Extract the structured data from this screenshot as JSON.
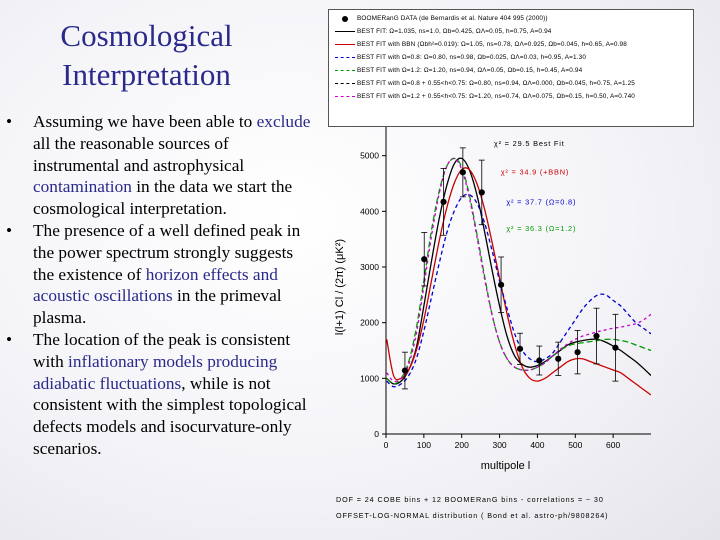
{
  "slide": {
    "title_lines": [
      "Cosmological",
      "Interpretation"
    ],
    "bullets": [
      [
        {
          "t": "Assuming we have been able to "
        },
        {
          "t": "exclude",
          "hl": true
        },
        {
          "t": " all the reasonable sources of instrumental and astrophysical "
        },
        {
          "t": "contamination",
          "hl": true
        },
        {
          "t": " in the data we start the cosmological interpretation."
        }
      ],
      [
        {
          "t": "The presence of a well defined peak in the power spectrum strongly suggests the existence of "
        },
        {
          "t": "horizon effects and acoustic oscillations",
          "hl": true
        },
        {
          "t": " in the primeval plasma."
        }
      ],
      [
        {
          "t": "The location of the peak is consistent with "
        },
        {
          "t": "inflationary models producing adiabatic fluctuations",
          "hl": true
        },
        {
          "t": ", while is not consistent with the simplest topological defects models and isocurvature-only scenarios."
        }
      ]
    ],
    "bullet_symbol": "•",
    "highlight_color": "#2a2a8c",
    "footnote_lines": [
      "DOF = 24 COBE bins + 12 BOOMERanG bins - correlations = ~ 30",
      "OFFSET-LOG-NORMAL distribution ( Bond et al. astro-ph/9808264)"
    ]
  },
  "chart_data": {
    "type": "line",
    "xlabel": "multipole l",
    "ylabel": "l(l+1) Cl / (2π)  (μK²)",
    "xlim": [
      0,
      700
    ],
    "ylim": [
      0,
      6000
    ],
    "xticks": [
      0,
      100,
      200,
      300,
      400,
      500,
      600
    ],
    "yticks": [
      0,
      1000,
      2000,
      3000,
      4000,
      5000
    ],
    "data_points": {
      "name": "BOOMERanG DATA (de Bernardis et al. Nature 404 995 (2000))",
      "x": [
        50,
        101,
        152,
        203,
        253,
        304,
        354,
        405,
        455,
        506,
        556,
        606
      ],
      "y": [
        1140,
        3140,
        4170,
        4700,
        4340,
        2680,
        1530,
        1320,
        1350,
        1470,
        1760,
        1550
      ],
      "err": [
        330,
        480,
        600,
        440,
        580,
        500,
        280,
        260,
        300,
        390,
        500,
        600
      ]
    },
    "series": [
      {
        "name": "BEST FIT: Ω=1.035, ns=1.0, Ωb=0.425, ΩΛ=0.05, h=0.75, A=0.94",
        "color": "#000000",
        "dash": "",
        "x": [
          2,
          20,
          40,
          60,
          80,
          100,
          120,
          140,
          160,
          180,
          200,
          220,
          240,
          260,
          280,
          300,
          320,
          340,
          360,
          380,
          400,
          420,
          440,
          460,
          480,
          500,
          520,
          540,
          560,
          580,
          600,
          620,
          640,
          660,
          680,
          700
        ],
        "y": [
          1000,
          900,
          950,
          1150,
          1550,
          2300,
          3100,
          3850,
          4450,
          4850,
          4950,
          4750,
          4300,
          3650,
          2950,
          2300,
          1750,
          1400,
          1250,
          1200,
          1230,
          1300,
          1400,
          1500,
          1600,
          1650,
          1680,
          1700,
          1700,
          1650,
          1580,
          1500,
          1400,
          1300,
          1180,
          1050
        ]
      },
      {
        "name": "BEST FIT with BBN (Ωbh²=0.019): Ω=1.05, ns=0.78, ΩΛ=0.925, Ωb=0.045, h=0.65, A=0.98",
        "color": "#cc0000",
        "dash": "",
        "x": [
          2,
          20,
          40,
          60,
          80,
          100,
          120,
          140,
          160,
          180,
          200,
          220,
          240,
          260,
          280,
          300,
          320,
          340,
          360,
          380,
          400,
          420,
          440,
          460,
          480,
          500,
          520,
          540,
          560,
          580,
          600,
          620,
          640,
          660,
          680,
          700
        ],
        "y": [
          1700,
          1050,
          1000,
          1150,
          1500,
          2050,
          2750,
          3450,
          4050,
          4500,
          4750,
          4750,
          4500,
          4050,
          3450,
          2800,
          2150,
          1600,
          1200,
          1000,
          950,
          1000,
          1100,
          1200,
          1300,
          1350,
          1350,
          1300,
          1250,
          1200,
          1150,
          1100,
          1000,
          900,
          800,
          700
        ]
      },
      {
        "name": "BEST FIT with Ω=0.8: Ω=0.80, ns=0.98, Ωb=0.025, ΩΛ=0.03, h=0.95, A=1.30",
        "color": "#0000cc",
        "dash": "4,3",
        "x": [
          2,
          20,
          40,
          60,
          80,
          100,
          120,
          140,
          160,
          180,
          200,
          220,
          240,
          260,
          280,
          300,
          320,
          340,
          360,
          380,
          400,
          420,
          440,
          460,
          480,
          500,
          520,
          540,
          560,
          580,
          600,
          620,
          640,
          660,
          680,
          700
        ],
        "y": [
          950,
          850,
          900,
          1050,
          1350,
          1850,
          2450,
          3050,
          3600,
          4000,
          4250,
          4300,
          4150,
          3800,
          3300,
          2750,
          2250,
          1800,
          1500,
          1350,
          1300,
          1350,
          1450,
          1650,
          1850,
          2050,
          2250,
          2400,
          2500,
          2500,
          2400,
          2300,
          2150,
          2000,
          1900,
          1800
        ]
      },
      {
        "name": "BEST FIT with Ω=1.2: Ω=1.20, ns=0.94, ΩΛ=0.05, Ωb=0.15, h=0.45, A=0.94",
        "color": "#009900",
        "dash": "6,3",
        "x": [
          2,
          20,
          40,
          60,
          80,
          100,
          120,
          140,
          160,
          180,
          200,
          220,
          240,
          260,
          280,
          300,
          320,
          340,
          360,
          380,
          400,
          420,
          440,
          460,
          480,
          500,
          520,
          540,
          560,
          580,
          600,
          620,
          640,
          660,
          680,
          700
        ],
        "y": [
          1000,
          900,
          1000,
          1300,
          1900,
          2750,
          3650,
          4350,
          4800,
          4950,
          4800,
          4300,
          3600,
          2850,
          2150,
          1650,
          1350,
          1200,
          1150,
          1150,
          1200,
          1280,
          1400,
          1500,
          1580,
          1620,
          1640,
          1660,
          1680,
          1700,
          1700,
          1680,
          1650,
          1600,
          1550,
          1500
        ]
      },
      {
        "name": "BEST FIT with Ω=0.8 + 0.55<h<0.75: Ω=0.80, ns=0.94, ΩΛ=0.000, Ωb=0.045, h=0.75, A=1.25",
        "color": "#000000",
        "dash": "3,3",
        "legend_only": true,
        "x": [],
        "y": []
      },
      {
        "name": "BEST FIT with Ω=1.2 + 0.55<h<0.75: Ω=1.20, ns=0.74, ΩΛ=0.075, Ωb=0.15, h=0.50, A=0.740",
        "color": "#cc00cc",
        "dash": "3,3",
        "x": [
          2,
          20,
          40,
          60,
          80,
          100,
          120,
          140,
          160,
          180,
          200,
          220,
          240,
          260,
          280,
          300,
          320,
          340,
          360,
          380,
          400,
          420,
          440,
          460,
          480,
          500,
          520,
          540,
          560,
          580,
          600,
          620,
          640,
          660,
          680,
          700
        ],
        "y": [
          1100,
          950,
          1000,
          1250,
          1800,
          2650,
          3550,
          4300,
          4800,
          4950,
          4750,
          4250,
          3550,
          2800,
          2150,
          1650,
          1350,
          1200,
          1150,
          1150,
          1200,
          1280,
          1400,
          1520,
          1620,
          1700,
          1760,
          1800,
          1840,
          1870,
          1900,
          1920,
          1950,
          1980,
          2050,
          2150
        ]
      }
    ],
    "annotations": [
      {
        "text": "χ² = 29.5  Best Fit",
        "color": "#000000",
        "at": [
          285,
          5170
        ]
      },
      {
        "text": "χ² = 34.9  (+BBN)",
        "color": "#cc0000",
        "at": [
          303,
          4660
        ]
      },
      {
        "text": "χ² = 37.7  (Ω=0.8)",
        "color": "#0000cc",
        "at": [
          318,
          4120
        ]
      },
      {
        "text": "χ² = 36.3  (Ω=1.2)",
        "color": "#009900",
        "at": [
          318,
          3650
        ]
      }
    ]
  }
}
